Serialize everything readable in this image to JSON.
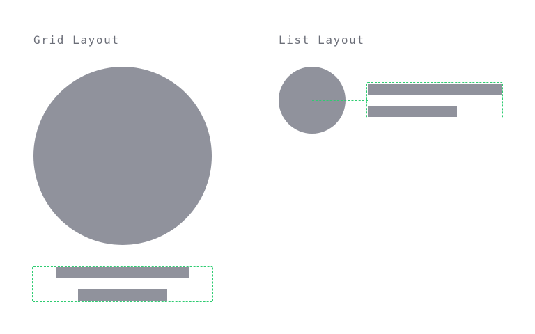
{
  "colors": {
    "placeholder": "#90929c",
    "guide": "#2ecc71",
    "title": "#6b6e78",
    "background": "#ffffff"
  },
  "grid_layout": {
    "title": "Grid Layout"
  },
  "list_layout": {
    "title": "List Layout"
  }
}
